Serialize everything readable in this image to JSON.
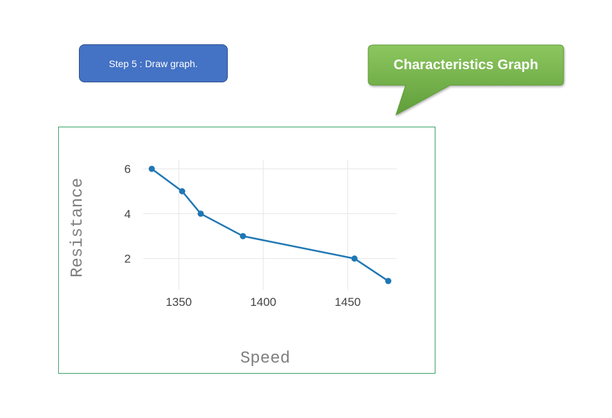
{
  "step": {
    "label": "Step 5 : Draw graph."
  },
  "callout": {
    "label": "Characteristics Graph",
    "color": "#70ad47"
  },
  "chart_data": {
    "type": "line",
    "x": [
      1334,
      1352,
      1363,
      1388,
      1454,
      1474
    ],
    "series": [
      {
        "values": [
          6,
          5,
          4,
          3,
          2,
          1
        ],
        "color": "#1f77b4"
      }
    ],
    "xlabel": "Speed",
    "ylabel": "Resistance",
    "xlim": [
      1329,
      1479
    ],
    "ylim": [
      0.6,
      6.4
    ],
    "xticks": [
      1350,
      1400,
      1450
    ],
    "yticks": [
      2,
      4,
      6
    ],
    "grid": true,
    "legend": "none"
  }
}
